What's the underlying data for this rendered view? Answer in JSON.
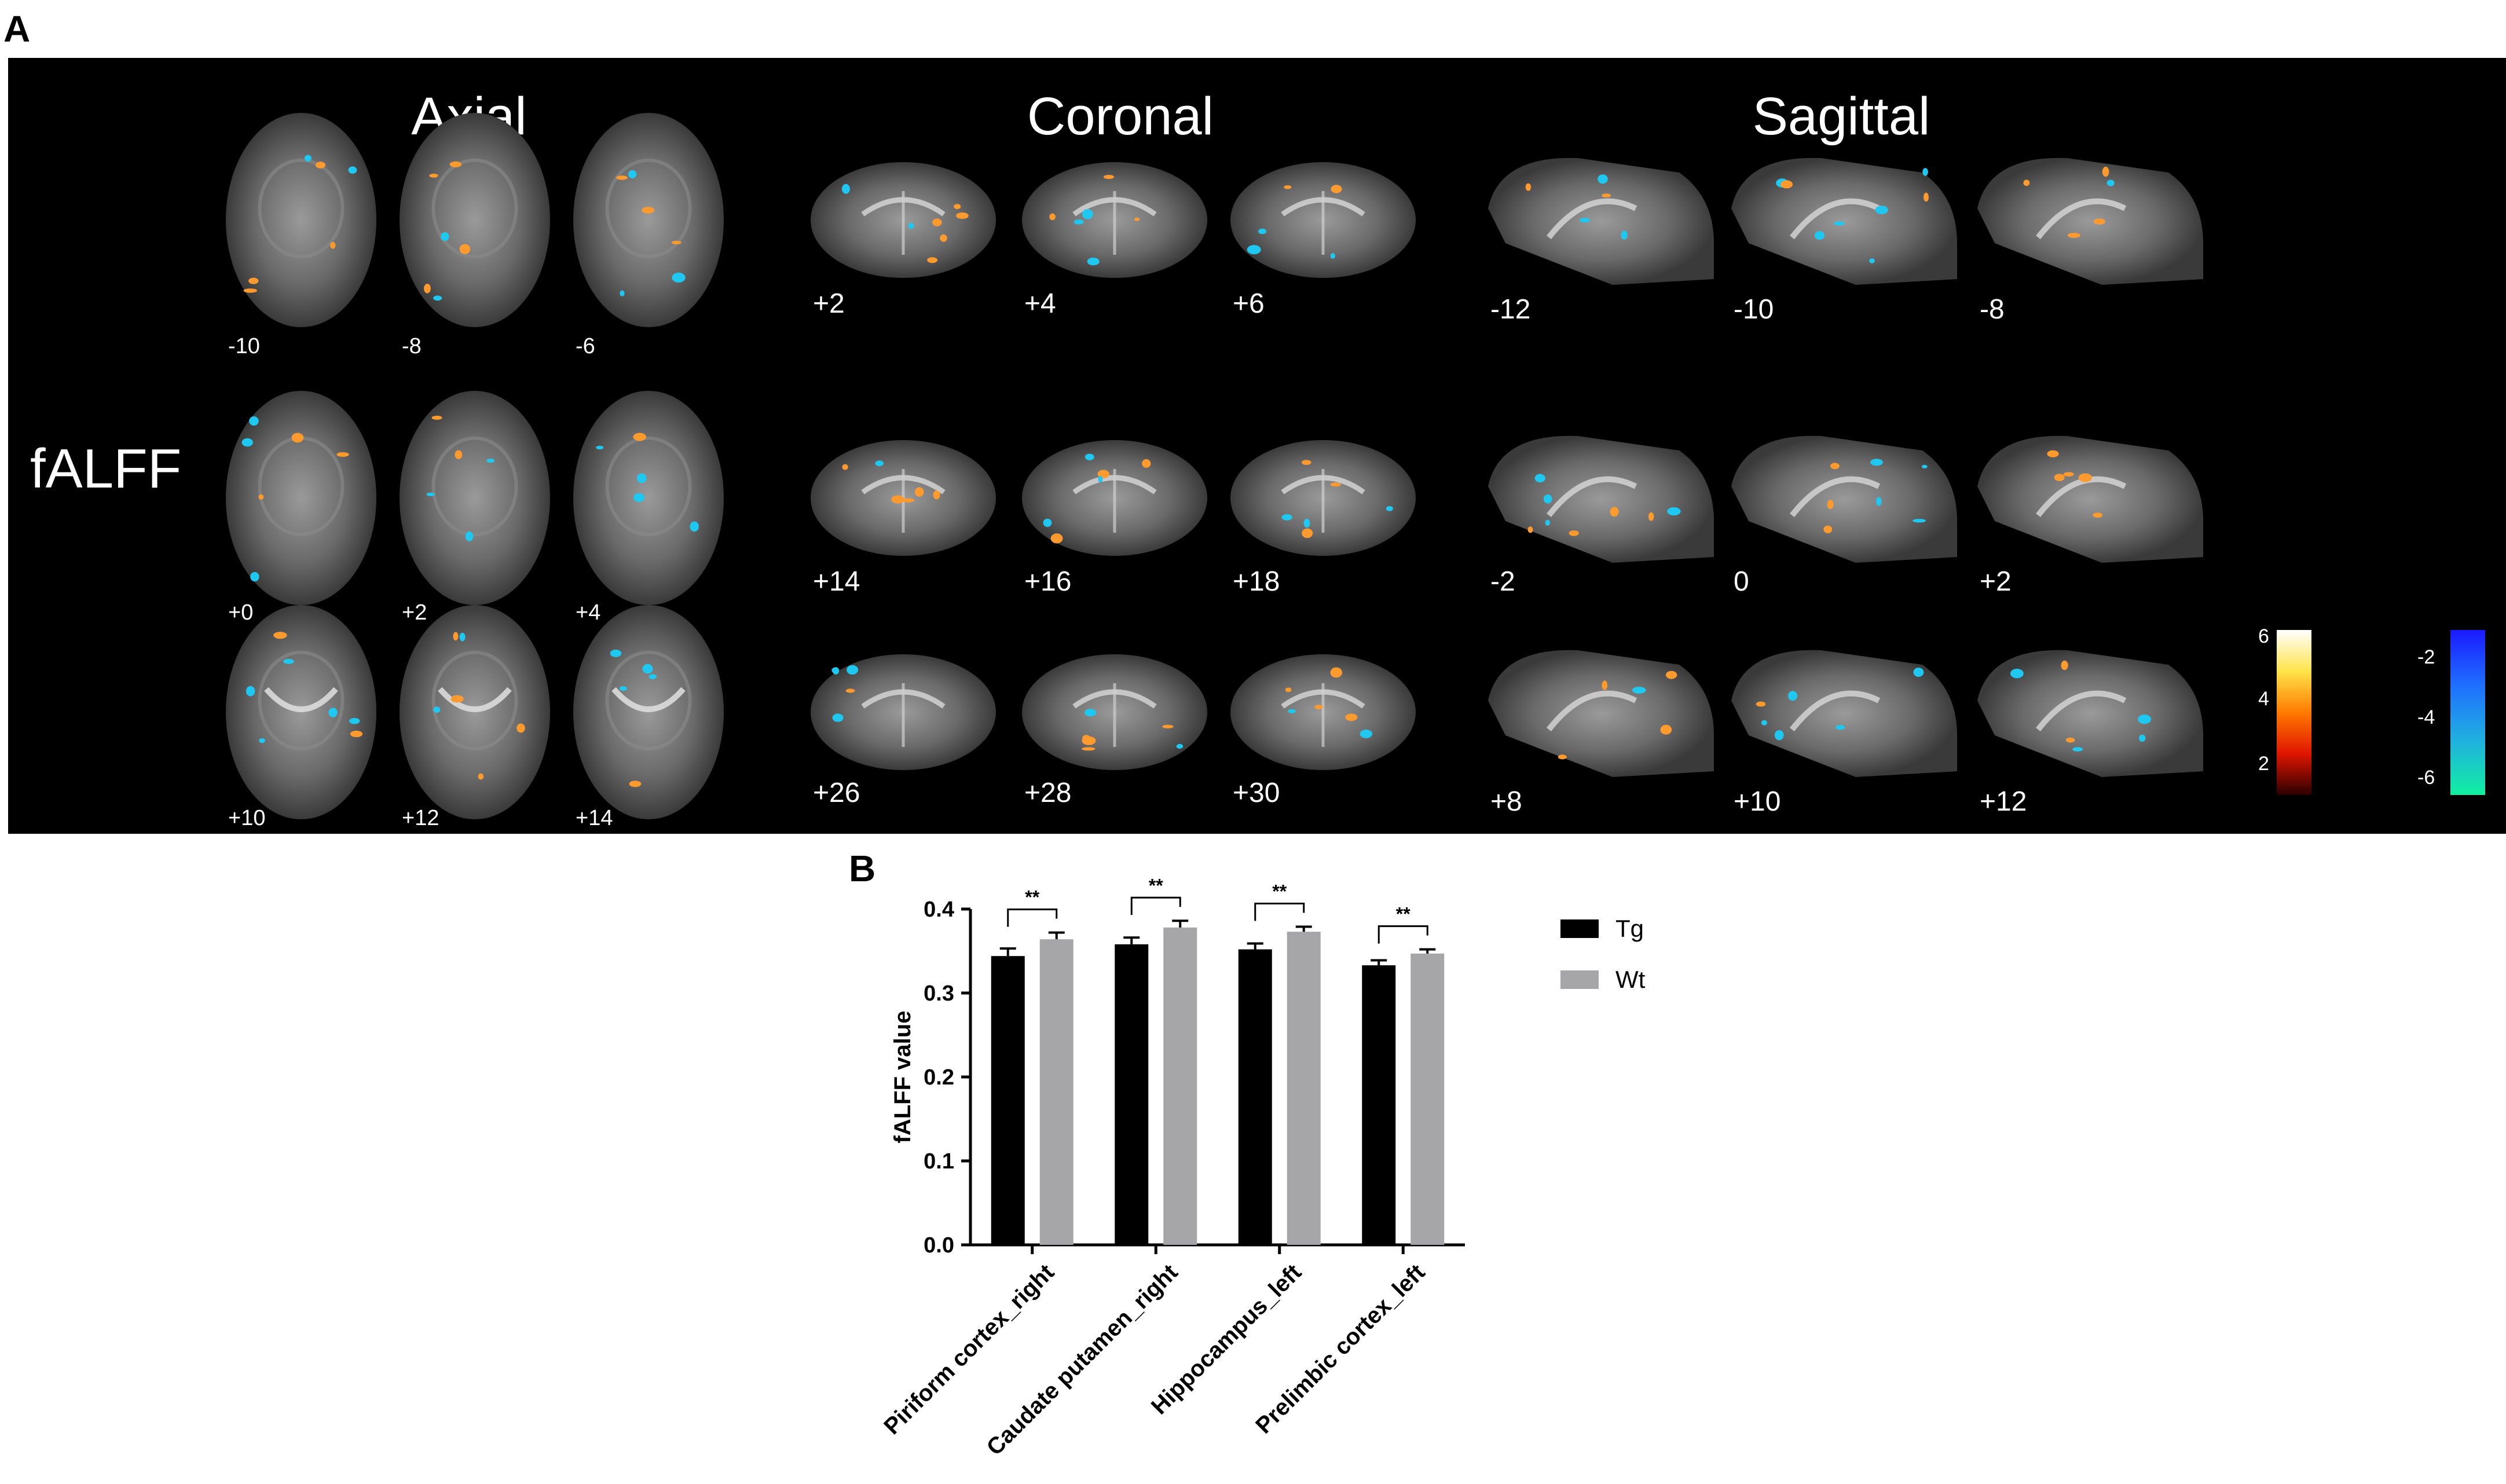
{
  "panels": {
    "a": "A",
    "b": "B"
  },
  "brain_panel": {
    "row_label": "fALFF",
    "views": [
      {
        "title": "Axial",
        "slices": [
          [
            "-10",
            "-8",
            "-6"
          ],
          [
            "+0",
            "+2",
            "+4"
          ],
          [
            "+10",
            "+12",
            "+14"
          ]
        ]
      },
      {
        "title": "Coronal",
        "slices": [
          [
            "+2",
            "+4",
            "+6"
          ],
          [
            "+14",
            "+16",
            "+18"
          ],
          [
            "+26",
            "+28",
            "+30"
          ]
        ]
      },
      {
        "title": "Sagittal",
        "slices": [
          [
            "-12",
            "-10",
            "-8"
          ],
          [
            "-2",
            "0",
            "+2"
          ],
          [
            "+8",
            "+10",
            "+12"
          ]
        ]
      }
    ],
    "colorbar_positive": {
      "ticks": [
        "6",
        "4",
        "2"
      ],
      "colors": [
        "#ffffff",
        "#ffe44a",
        "#ff7a00",
        "#e01400",
        "#2a0000"
      ]
    },
    "colorbar_negative": {
      "ticks": [
        "-2",
        "-4",
        "-6"
      ],
      "colors": [
        "#1a1aff",
        "#1f6fff",
        "#20b0e0",
        "#10f0a0"
      ]
    },
    "blob_colors": {
      "positive": "#ff9a2e",
      "negative": "#1ec8f0"
    }
  },
  "chart_data": {
    "type": "bar",
    "title": "",
    "xlabel": "",
    "ylabel": "fALFF value",
    "ylim": [
      0,
      0.4
    ],
    "yticks": [
      "0.0",
      "0.1",
      "0.2",
      "0.3",
      "0.4"
    ],
    "categories": [
      "Piriform cortex_right",
      "Caudate putamen_right",
      "Hippocampus_left",
      "Prelimbic cortex_left"
    ],
    "series": [
      {
        "name": "Tg",
        "color": "#000000",
        "values": [
          0.344,
          0.358,
          0.352,
          0.333
        ],
        "errors": [
          0.009,
          0.008,
          0.007,
          0.006
        ]
      },
      {
        "name": "Wt",
        "color": "#a6a6a8",
        "values": [
          0.364,
          0.378,
          0.373,
          0.347
        ],
        "errors": [
          0.008,
          0.008,
          0.006,
          0.005
        ]
      }
    ],
    "significance": [
      "**",
      "**",
      "**",
      "**"
    ],
    "legend_position": "right"
  }
}
